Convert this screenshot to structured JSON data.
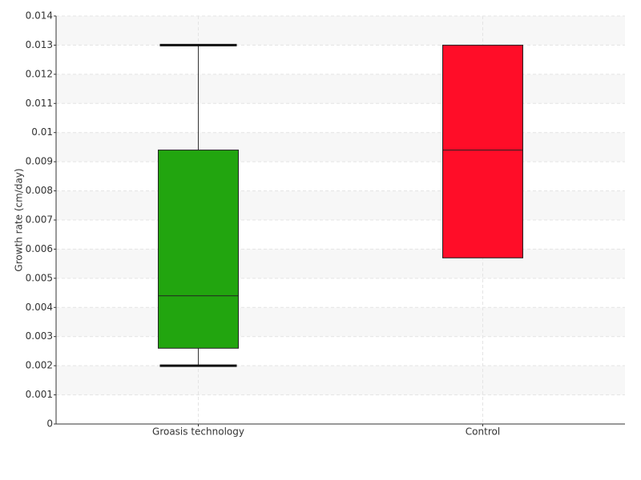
{
  "chart_data": {
    "type": "box",
    "y_label": "Growth rate (cm/day)",
    "categories": [
      "Groasis technology",
      "Control"
    ],
    "colors": [
      "#22a50f",
      "#ff0d28"
    ],
    "min": [
      0.002,
      0.0057
    ],
    "q1": [
      0.0026,
      0.0057
    ],
    "median": [
      0.0044,
      0.0094
    ],
    "q3": [
      0.0094,
      0.013
    ],
    "max": [
      0.013,
      0.013
    ],
    "ylim": [
      0,
      0.014
    ],
    "yticks": [
      0,
      0.001,
      0.002,
      0.003,
      0.004,
      0.005,
      0.006,
      0.007,
      0.008,
      0.009,
      0.01,
      0.011,
      0.012,
      0.013,
      0.014
    ],
    "grid": true
  }
}
